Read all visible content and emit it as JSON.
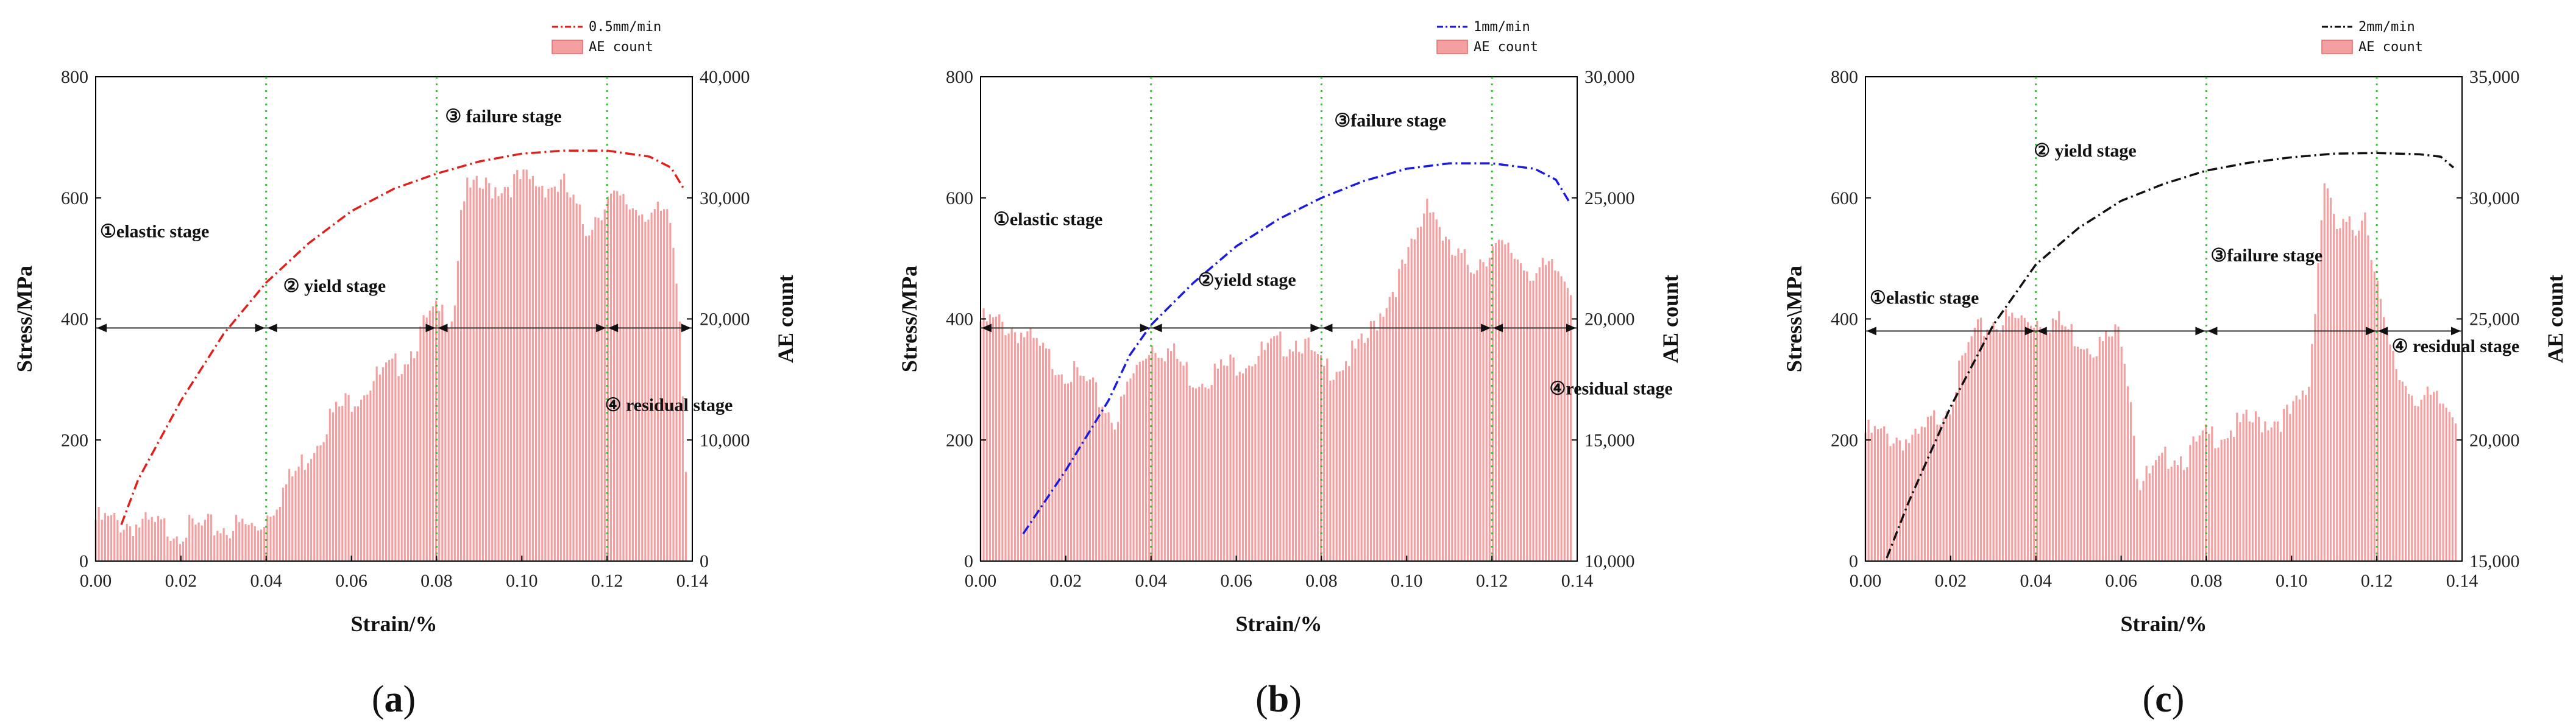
{
  "chart_data": [
    {
      "id": "a",
      "type": "bar+line",
      "caption_left": "(",
      "caption_letter": "a",
      "caption_right": ")",
      "xlabel": "Strain/%",
      "ylabel_left": "Stress/MPa",
      "ylabel_right": "AE count",
      "xlim": [
        0,
        0.14
      ],
      "ylim_left": [
        0,
        800
      ],
      "ylim_right": [
        0,
        40000
      ],
      "x_ticks": [
        0,
        0.02,
        0.04,
        0.06,
        0.08,
        0.1,
        0.12,
        0.14
      ],
      "x_tick_labels": [
        "0.00",
        "0.02",
        "0.04",
        "0.06",
        "0.08",
        "0.10",
        "0.12",
        "0.14"
      ],
      "y_left_ticks": [
        0,
        200,
        400,
        600,
        800
      ],
      "y_left_tick_labels": [
        "0",
        "200",
        "400",
        "600",
        "800"
      ],
      "y_right_ticks": [
        0,
        10000,
        20000,
        30000,
        40000
      ],
      "y_right_tick_labels": [
        "0",
        "10,000",
        "20,000",
        "30,000",
        "40,000"
      ],
      "legend": {
        "line": "0.5mm/min",
        "bars": "AE count",
        "position": "top-right"
      },
      "line_color": "#e0201b",
      "line_style": "dashdot",
      "bar_color": "#f4a0a0",
      "stage_lines_x": [
        0.04,
        0.08,
        0.12
      ],
      "arrow_y_stress": 385,
      "stages": [
        {
          "label": "①elastic stage",
          "x": 0.001,
          "y": 535
        },
        {
          "label": "② yield stage",
          "x": 0.044,
          "y": 445
        },
        {
          "label": "③ failure stage",
          "x": 0.082,
          "y": 725
        },
        {
          "label": "④ residual stage",
          "x": 0.1195,
          "y": 248
        }
      ],
      "stress_curve": {
        "x": [
          0.006,
          0.01,
          0.02,
          0.03,
          0.04,
          0.05,
          0.06,
          0.07,
          0.08,
          0.09,
          0.1,
          0.11,
          0.12,
          0.13,
          0.135,
          0.138
        ],
        "y": [
          60,
          135,
          265,
          375,
          460,
          525,
          578,
          615,
          640,
          660,
          673,
          678,
          678,
          668,
          650,
          615
        ]
      },
      "ae_series": {
        "x": [
          0,
          0.02,
          0.035,
          0.038,
          0.045,
          0.05,
          0.055,
          0.06,
          0.065,
          0.07,
          0.074,
          0.078,
          0.08,
          0.084,
          0.086,
          0.1,
          0.11,
          0.115,
          0.12,
          0.125,
          0.13,
          0.135,
          0.137,
          0.1385
        ],
        "y": [
          4000,
          3200,
          3500,
          3300,
          7000,
          9500,
          12500,
          14000,
          15500,
          16500,
          18000,
          20500,
          21000,
          21000,
          31000,
          32000,
          31500,
          28000,
          30500,
          30000,
          29500,
          28500,
          21000,
          9000
        ]
      }
    },
    {
      "id": "b",
      "type": "bar+line",
      "caption_left": "(",
      "caption_letter": "b",
      "caption_right": ")",
      "xlabel": "Strain/%",
      "ylabel_left": "Stress/MPa",
      "ylabel_right": "AE count",
      "xlim": [
        0,
        0.14
      ],
      "ylim_left": [
        0,
        800
      ],
      "ylim_right": [
        10000,
        30000
      ],
      "x_ticks": [
        0,
        0.02,
        0.04,
        0.06,
        0.08,
        0.1,
        0.12,
        0.14
      ],
      "x_tick_labels": [
        "0.00",
        "0.02",
        "0.04",
        "0.06",
        "0.08",
        "0.10",
        "0.12",
        "0.14"
      ],
      "y_left_ticks": [
        0,
        200,
        400,
        600,
        800
      ],
      "y_left_tick_labels": [
        "0",
        "200",
        "400",
        "600",
        "800"
      ],
      "y_right_ticks": [
        10000,
        15000,
        20000,
        25000,
        30000
      ],
      "y_right_tick_labels": [
        "10,000",
        "15,000",
        "20,000",
        "25,000",
        "30,000"
      ],
      "legend": {
        "line": "1mm/min",
        "bars": "AE count",
        "position": "top-right"
      },
      "line_color": "#1a1ae0",
      "line_style": "dashdot",
      "bar_color": "#f4a0a0",
      "stage_lines_x": [
        0.04,
        0.08,
        0.12
      ],
      "arrow_y_stress": 385,
      "stages": [
        {
          "label": "①elastic stage",
          "x": 0.003,
          "y": 555
        },
        {
          "label": "②yield stage",
          "x": 0.051,
          "y": 455
        },
        {
          "label": "③failure stage",
          "x": 0.083,
          "y": 718
        },
        {
          "label": "④residual stage",
          "x": 0.1335,
          "y": 275
        }
      ],
      "stress_curve": {
        "x": [
          0.01,
          0.02,
          0.03,
          0.035,
          0.04,
          0.05,
          0.06,
          0.07,
          0.08,
          0.09,
          0.1,
          0.11,
          0.12,
          0.13,
          0.135,
          0.138
        ],
        "y": [
          45,
          150,
          265,
          340,
          390,
          460,
          520,
          565,
          600,
          628,
          648,
          657,
          657,
          648,
          630,
          595
        ]
      },
      "ae_series": {
        "x": [
          0,
          0.005,
          0.01,
          0.015,
          0.02,
          0.025,
          0.03,
          0.032,
          0.035,
          0.04,
          0.045,
          0.05,
          0.055,
          0.06,
          0.065,
          0.07,
          0.075,
          0.08,
          0.085,
          0.09,
          0.095,
          0.1,
          0.103,
          0.105,
          0.108,
          0.11,
          0.115,
          0.12,
          0.125,
          0.13,
          0.135,
          0.1385
        ],
        "y": [
          20200,
          20100,
          19700,
          18800,
          18200,
          17600,
          16500,
          16100,
          17700,
          19300,
          18900,
          17800,
          18100,
          18500,
          18800,
          19200,
          19500,
          18200,
          18500,
          19200,
          21000,
          22600,
          24000,
          25500,
          24000,
          23000,
          22500,
          23200,
          23000,
          22200,
          22300,
          21800
        ]
      }
    },
    {
      "id": "c",
      "type": "bar+line",
      "caption_left": "(",
      "caption_letter": "c",
      "caption_right": ")",
      "xlabel": "Strain/%",
      "ylabel_left": "Stress\\MPa",
      "ylabel_right": "AE count",
      "xlim": [
        0,
        0.14
      ],
      "ylim_left": [
        0,
        800
      ],
      "ylim_right": [
        15000,
        35000
      ],
      "x_ticks": [
        0,
        0.02,
        0.04,
        0.06,
        0.08,
        0.1,
        0.12,
        0.14
      ],
      "x_tick_labels": [
        "0.00",
        "0.02",
        "0.04",
        "0.06",
        "0.08",
        "0.10",
        "0.12",
        "0.14"
      ],
      "y_left_ticks": [
        0,
        200,
        400,
        600,
        800
      ],
      "y_left_tick_labels": [
        "0",
        "200",
        "400",
        "600",
        "800"
      ],
      "y_right_ticks": [
        15000,
        20000,
        25000,
        30000,
        35000
      ],
      "y_right_tick_labels": [
        "15,000",
        "20,000",
        "25,000",
        "30,000",
        "35,000"
      ],
      "legend": {
        "line": "2mm/min",
        "bars": "AE count",
        "position": "top-right"
      },
      "line_color": "#111111",
      "line_style": "dashdot",
      "bar_color": "#f4a0a0",
      "stage_lines_x": [
        0.04,
        0.08,
        0.12
      ],
      "arrow_y_stress": 380,
      "stages": [
        {
          "label": "①elastic stage",
          "x": 0.001,
          "y": 425
        },
        {
          "label": "② yield stage",
          "x": 0.0395,
          "y": 668
        },
        {
          "label": "③failure stage",
          "x": 0.081,
          "y": 495
        },
        {
          "label": "④ residual stage",
          "x": 0.1235,
          "y": 345
        }
      ],
      "stress_curve": {
        "x": [
          0.005,
          0.01,
          0.02,
          0.03,
          0.04,
          0.05,
          0.06,
          0.07,
          0.08,
          0.09,
          0.1,
          0.11,
          0.12,
          0.13,
          0.135,
          0.138
        ],
        "y": [
          5,
          95,
          255,
          390,
          490,
          550,
          595,
          623,
          645,
          658,
          667,
          673,
          674,
          672,
          668,
          650
        ]
      },
      "ae_series": {
        "x": [
          0,
          0.008,
          0.012,
          0.02,
          0.025,
          0.03,
          0.04,
          0.045,
          0.05,
          0.055,
          0.06,
          0.0625,
          0.064,
          0.068,
          0.072,
          0.075,
          0.08,
          0.09,
          0.1,
          0.104,
          0.107,
          0.108,
          0.11,
          0.115,
          0.117,
          0.12,
          0.122,
          0.125,
          0.13,
          0.135,
          0.1385
        ],
        "y": [
          20600,
          20400,
          20200,
          22000,
          24500,
          25200,
          25300,
          25200,
          24500,
          24200,
          24800,
          22000,
          18500,
          19000,
          19800,
          19600,
          20400,
          21000,
          21300,
          22500,
          29500,
          31500,
          29000,
          29000,
          30000,
          27000,
          24500,
          23000,
          22000,
          21800,
          21500
        ]
      }
    }
  ]
}
